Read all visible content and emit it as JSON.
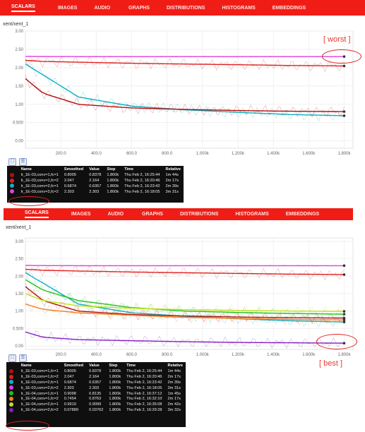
{
  "tabs": [
    "SCALARS",
    "IMAGES",
    "AUDIO",
    "GRAPHS",
    "DISTRIBUTIONS",
    "HISTOGRAMS",
    "EMBEDDINGS"
  ],
  "run_title": "xent/xent_1",
  "annotations": {
    "worst": "[ worst ]",
    "best": "[ best ]"
  },
  "legend_headers": [
    "Name",
    "Smoothed",
    "Value",
    "Step",
    "Time",
    "Relative"
  ],
  "legend_top": [
    {
      "name": "lr_1E-03,conv=1,fc=1",
      "smoothed": "0.8005",
      "value": "0.8378",
      "step": "1.800k",
      "time": "Thu Feb 2, 16:25:44",
      "relative": "1m 44s",
      "color": "#b01010"
    },
    {
      "name": "lr_1E-03,conv=1,fc=2",
      "smoothed": "2.047",
      "value": "2.164",
      "step": "1.800k",
      "time": "Thu Feb 2, 16:20:46",
      "relative": "2m 17s",
      "color": "#e02020"
    },
    {
      "name": "lr_1E-03,conv=2,fc=1",
      "smoothed": "0.6874",
      "value": "0.6357",
      "step": "1.800k",
      "time": "Thu Feb 2, 16:23:42",
      "relative": "2m 39s",
      "color": "#10b0c0"
    },
    {
      "name": "lr_1E-03,conv=2,fc=2",
      "smoothed": "2.303",
      "value": "2.303",
      "step": "1.800k",
      "time": "Thu Feb 2, 16:18:05",
      "relative": "3m 31s",
      "color": "#e040e0"
    }
  ],
  "legend_bottom": [
    {
      "name": "lr_1E-03,conv=1,fc=1",
      "smoothed": "0.8005",
      "value": "0.8378",
      "step": "1.800k",
      "time": "Thu Feb 2, 16:25:44",
      "relative": "1m 44s",
      "color": "#b01010"
    },
    {
      "name": "lr_1E-03,conv=1,fc=2",
      "smoothed": "2.047",
      "value": "2.164",
      "step": "1.800k",
      "time": "Thu Feb 2, 16:20:46",
      "relative": "2m 17s",
      "color": "#e02020"
    },
    {
      "name": "lr_1E-03,conv=2,fc=1",
      "smoothed": "0.6874",
      "value": "0.6357",
      "step": "1.800k",
      "time": "Thu Feb 2, 16:23:42",
      "relative": "2m 39s",
      "color": "#10b0c0"
    },
    {
      "name": "lr_1E-03,conv=2,fc=2",
      "smoothed": "2.303",
      "value": "2.303",
      "step": "1.800k",
      "time": "Thu Feb 2, 16:18:05",
      "relative": "3m 31s",
      "color": "#e040e0"
    },
    {
      "name": "lr_1E-04,conv=1,fc=1",
      "smoothed": "0.9098",
      "value": "0.8135",
      "step": "1.800k",
      "time": "Thu Feb 2, 16:37:12",
      "relative": "1m 45s",
      "color": "#20c020"
    },
    {
      "name": "lr_1E-04,conv=1,fc=2",
      "smoothed": "0.7454",
      "value": "0.8763",
      "step": "1.800k",
      "time": "Thu Feb 2, 16:32:10",
      "relative": "2m 17s",
      "color": "#f08020"
    },
    {
      "name": "lr_1E-04,conv=2,fc=1",
      "smoothed": "0.9919",
      "value": "0.9099",
      "step": "1.800k",
      "time": "Thu Feb 2, 16:35:08",
      "relative": "2m 42s",
      "color": "#c0e020"
    },
    {
      "name": "lr_1E-04,conv=2,fc=2",
      "smoothed": "0.07889",
      "value": "0.03762",
      "step": "1.800k",
      "time": "Thu Feb 2, 16:29:28",
      "relative": "3m 32s",
      "color": "#8020c0"
    }
  ],
  "chart_data": [
    {
      "type": "line",
      "title": "xent/xent_1",
      "x_ticks": [
        "200.0",
        "400.0",
        "600.0",
        "800.0",
        "1.000k",
        "1.200k",
        "1.400k",
        "1.600k",
        "1.800k"
      ],
      "y_ticks": [
        "3.00",
        "2.50",
        "2.00",
        "1.50",
        "1.00",
        "0.500",
        "0.00"
      ],
      "xlim": [
        0,
        1850
      ],
      "ylim": [
        -0.2,
        3.0
      ],
      "grid": true,
      "series": [
        {
          "name": "lr_1E-03,conv=2,fc=2",
          "color": "#e040e0",
          "x": [
            0,
            100,
            300,
            600,
            900,
            1200,
            1500,
            1800
          ],
          "y": [
            2.31,
            2.305,
            2.303,
            2.303,
            2.303,
            2.303,
            2.303,
            2.303
          ]
        },
        {
          "name": "lr_1E-03,conv=1,fc=2",
          "color": "#e02020",
          "x": [
            0,
            100,
            300,
            600,
            900,
            1200,
            1500,
            1800
          ],
          "y": [
            2.2,
            2.17,
            2.15,
            2.12,
            2.1,
            2.08,
            2.06,
            2.047
          ]
        },
        {
          "name": "lr_1E-03,conv=2,fc=1",
          "color": "#10b0c0",
          "x": [
            0,
            100,
            300,
            600,
            900,
            1200,
            1500,
            1800
          ],
          "y": [
            2.1,
            1.8,
            1.2,
            0.95,
            0.85,
            0.78,
            0.72,
            0.687
          ]
        },
        {
          "name": "lr_1E-03,conv=1,fc=1",
          "color": "#b01010",
          "x": [
            0,
            100,
            300,
            600,
            900,
            1200,
            1500,
            1800
          ],
          "y": [
            1.7,
            1.3,
            1.0,
            0.9,
            0.86,
            0.83,
            0.81,
            0.8
          ]
        }
      ]
    },
    {
      "type": "line",
      "title": "xent/xent_1",
      "x_ticks": [
        "200.0",
        "400.0",
        "600.0",
        "800.0",
        "1.000k",
        "1.200k",
        "1.400k",
        "1.600k",
        "1.800k"
      ],
      "y_ticks": [
        "3.00",
        "2.50",
        "2.00",
        "1.50",
        "1.00",
        "0.500",
        "0.00"
      ],
      "xlim": [
        0,
        1850
      ],
      "ylim": [
        -0.1,
        3.1
      ],
      "grid": true,
      "series": [
        {
          "name": "lr_1E-03,conv=2,fc=2",
          "color": "#e040e0",
          "x": [
            0,
            100,
            300,
            600,
            900,
            1200,
            1500,
            1800
          ],
          "y": [
            2.31,
            2.305,
            2.303,
            2.303,
            2.303,
            2.303,
            2.303,
            2.303
          ]
        },
        {
          "name": "lr_1E-03,conv=1,fc=2",
          "color": "#e02020",
          "x": [
            0,
            100,
            300,
            600,
            900,
            1200,
            1500,
            1800
          ],
          "y": [
            2.2,
            2.17,
            2.15,
            2.12,
            2.1,
            2.08,
            2.06,
            2.047
          ]
        },
        {
          "name": "lr_1E-03,conv=2,fc=1",
          "color": "#10b0c0",
          "x": [
            0,
            100,
            300,
            600,
            900,
            1200,
            1500,
            1800
          ],
          "y": [
            2.1,
            1.8,
            1.2,
            0.95,
            0.85,
            0.78,
            0.72,
            0.687
          ]
        },
        {
          "name": "lr_1E-03,conv=1,fc=1",
          "color": "#b01010",
          "x": [
            0,
            100,
            300,
            600,
            900,
            1200,
            1500,
            1800
          ],
          "y": [
            1.7,
            1.3,
            1.0,
            0.9,
            0.86,
            0.83,
            0.81,
            0.8
          ]
        },
        {
          "name": "lr_1E-04,conv=1,fc=1",
          "color": "#20c020",
          "x": [
            0,
            100,
            300,
            600,
            900,
            1200,
            1500,
            1800
          ],
          "y": [
            1.9,
            1.6,
            1.3,
            1.1,
            1.0,
            0.96,
            0.93,
            0.91
          ]
        },
        {
          "name": "lr_1E-04,conv=1,fc=2",
          "color": "#f08020",
          "x": [
            0,
            100,
            300,
            600,
            900,
            1200,
            1500,
            1800
          ],
          "y": [
            1.2,
            1.05,
            0.95,
            0.88,
            0.82,
            0.79,
            0.76,
            0.745
          ]
        },
        {
          "name": "lr_1E-04,conv=2,fc=1",
          "color": "#c0e020",
          "x": [
            0,
            100,
            300,
            600,
            900,
            1200,
            1500,
            1800
          ],
          "y": [
            1.5,
            1.3,
            1.15,
            1.08,
            1.04,
            1.02,
            1.0,
            0.992
          ]
        },
        {
          "name": "lr_1E-04,conv=2,fc=2",
          "color": "#8020c0",
          "x": [
            0,
            100,
            300,
            600,
            900,
            1200,
            1500,
            1800
          ],
          "y": [
            0.4,
            0.25,
            0.18,
            0.15,
            0.12,
            0.1,
            0.09,
            0.079
          ]
        }
      ]
    }
  ]
}
